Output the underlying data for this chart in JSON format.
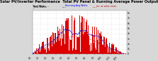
{
  "title": "Solar PV/Inverter Performance  Total PV Panel & Running Average Power Output",
  "title_fontsize": 3.5,
  "bg_color": "#d8d8d8",
  "plot_bg_color": "#ffffff",
  "bar_color": "#dd0000",
  "avg_color": "#0000cc",
  "noon_color": "#cc0000",
  "ylim": [
    0,
    8500
  ],
  "num_bars": 365,
  "peak_day": 171,
  "peak_value": 7800,
  "sigma": 88,
  "ytick_vals": [
    0,
    1000,
    2000,
    3000,
    4000,
    5000,
    6000,
    7000,
    8000
  ],
  "ytick_labels": [
    "0",
    "1k",
    "2k",
    "3k",
    "4k",
    "5k",
    "6k",
    "7k",
    "8k"
  ],
  "month_days": [
    0,
    31,
    59,
    90,
    120,
    151,
    181,
    212,
    243,
    273,
    304,
    334
  ],
  "month_labels": [
    "1/1",
    "2/1",
    "3/1",
    "4/1",
    "5/1",
    "6/1",
    "7/1",
    "8/1",
    "9/1",
    "10/1",
    "11/1",
    "12/1"
  ],
  "seed": 42
}
